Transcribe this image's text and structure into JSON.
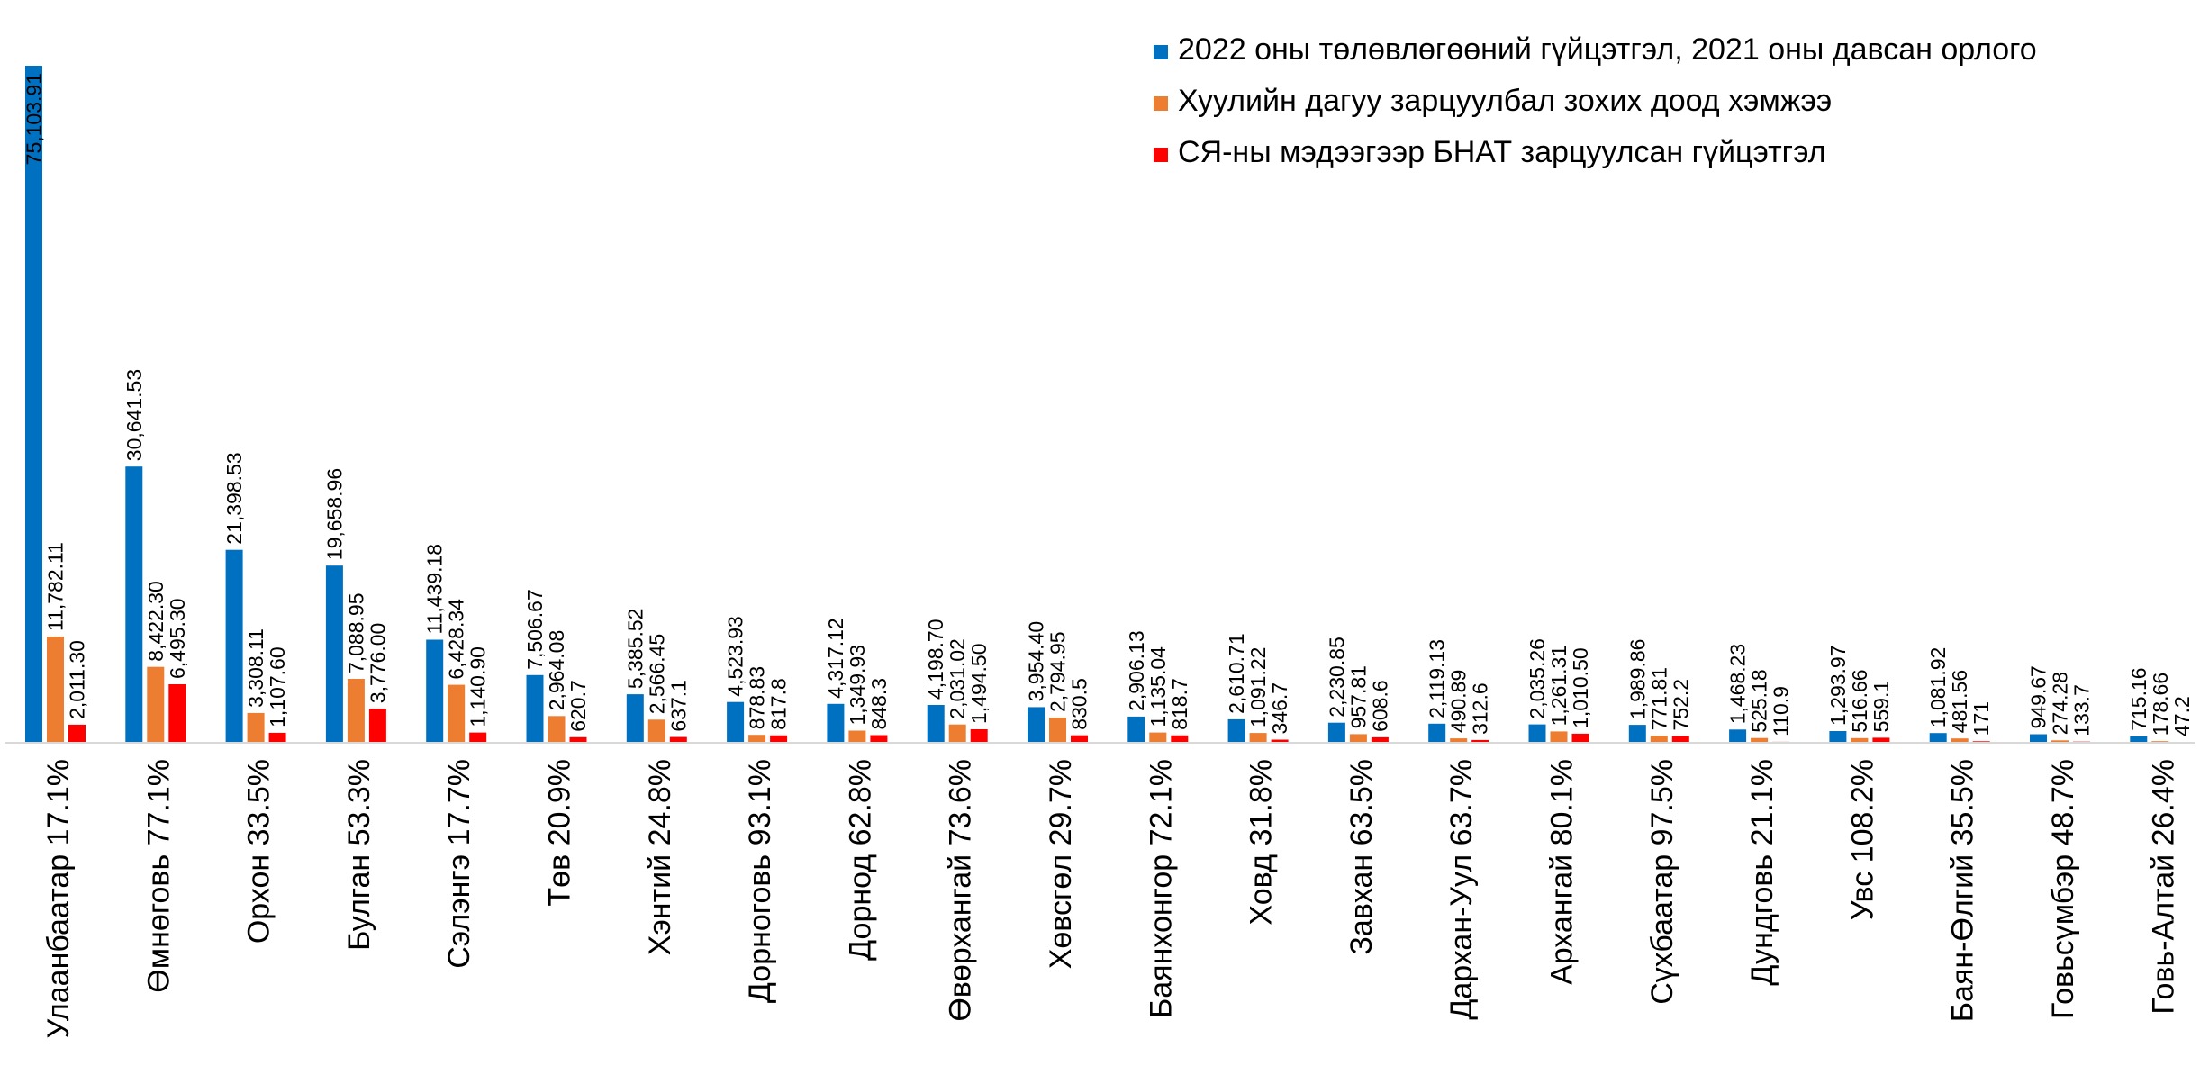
{
  "chart_data": {
    "type": "bar",
    "title": "",
    "xlabel": "",
    "ylabel": "",
    "ylim": [
      0,
      75103.91
    ],
    "grid": false,
    "legend_position": "top-right",
    "categories": [
      "Улаанбаатар 17.1%",
      "Өмнөговь 77.1%",
      "Орхон 33.5%",
      "Булган 53.3%",
      "Сэлэнгэ 17.7%",
      "Төв 20.9%",
      "Хэнтий 24.8%",
      "Дорноговь 93.1%",
      "Дорнод 62.8%",
      "Өвөрхангай 73.6%",
      "Хөвсгөл 29.7%",
      "Баянхонгор 72.1%",
      "Ховд 31.8%",
      "Завхан 63.5%",
      "Дархан-Уул 63.7%",
      "Архангай 80.1%",
      "Сүхбаатар 97.5%",
      "Дундговь 21.1%",
      "Увс 108.2%",
      "Баян-Өлгий 35.5%",
      "Говьсүмбэр 48.7%",
      "Говь-Алтай 26.4%"
    ],
    "series": [
      {
        "name": "2022 оны төлөвлөгөөний гүйцэтгэл, 2021 оны давсан орлого",
        "color": "#0070C0",
        "values": [
          75103.91,
          30641.53,
          21398.53,
          19658.96,
          11439.18,
          7506.67,
          5385.52,
          4523.93,
          4317.12,
          4198.7,
          3954.4,
          2906.13,
          2610.71,
          2230.85,
          2119.13,
          2035.26,
          1989.86,
          1468.23,
          1293.97,
          1081.92,
          949.67,
          715.16
        ],
        "labels": [
          "75,103.91",
          "30,641.53",
          "21,398.53",
          "19,658.96",
          "11,439.18",
          "7,506.67",
          "5,385.52",
          "4,523.93",
          "4,317.12",
          "4,198.70",
          "3,954.40",
          "2,906.13",
          "2,610.71",
          "2,230.85",
          "2,119.13",
          "2,035.26",
          "1,989.86",
          "1,468.23",
          "1,293.97",
          "1,081.92",
          "949.67",
          "715.16"
        ]
      },
      {
        "name": "Хуулийн дагуу зарцуулбал зохих доод хэмжээ",
        "color": "#ED7D31",
        "values": [
          11782.11,
          8422.3,
          3308.11,
          7088.95,
          6428.34,
          2964.08,
          2566.45,
          878.83,
          1349.93,
          2031.02,
          2794.95,
          1135.04,
          1091.22,
          957.81,
          490.89,
          1261.31,
          771.81,
          525.18,
          516.66,
          481.56,
          274.28,
          178.66
        ],
        "labels": [
          "11,782.11",
          "8,422.30",
          "3,308.11",
          "7,088.95",
          "6,428.34",
          "2,964.08",
          "2,566.45",
          "878.83",
          "1,349.93",
          "2,031.02",
          "2,794.95",
          "1,135.04",
          "1,091.22",
          "957.81",
          "490.89",
          "1,261.31",
          "771.81",
          "525.18",
          "516.66",
          "481.56",
          "274.28",
          "178.66"
        ]
      },
      {
        "name": "СЯ-ны мэдээгээр БНАТ зарцуулсан гүйцэтгэл",
        "color": "#FF0000",
        "values": [
          2011.3,
          6495.3,
          1107.6,
          3776.0,
          1140.9,
          620.7,
          637.1,
          817.8,
          848.3,
          1494.5,
          830.5,
          818.7,
          346.7,
          608.6,
          312.6,
          1010.5,
          752.2,
          110.9,
          559.1,
          171,
          133.7,
          47.2
        ],
        "labels": [
          "2,011.30",
          "6,495.30",
          "1,107.60",
          "3,776.00",
          "1,140.90",
          "620.7",
          "637.1",
          "817.8",
          "848.3",
          "1,494.50",
          "830.5",
          "818.7",
          "346.7",
          "608.6",
          "312.6",
          "1,010.50",
          "752.2",
          "110.9",
          "559.1",
          "171",
          "133.7",
          "47.2"
        ]
      }
    ]
  }
}
